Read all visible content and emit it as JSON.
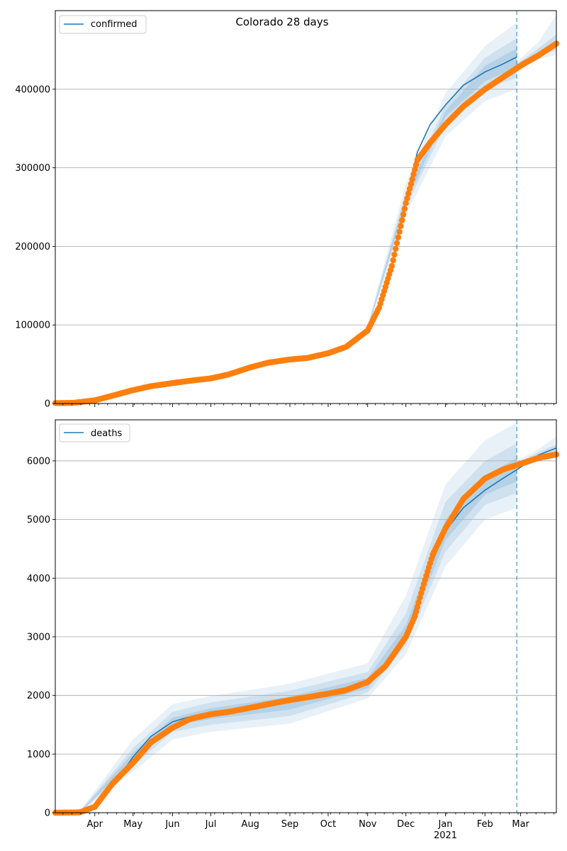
{
  "colors": {
    "model": "#1f77b4",
    "observed": "#ff7f0e",
    "band": "#1f77b4",
    "grid": "#b0b0b0",
    "axis": "#000000"
  },
  "chart_data": [
    {
      "type": "line",
      "title": "Colorado 28 days",
      "xlabel": "",
      "ylabel": "",
      "x_unit": "date",
      "x_range": [
        "2020-03-01",
        "2021-03-29"
      ],
      "ylim": [
        0,
        500000
      ],
      "yticks": [
        0,
        100000,
        200000,
        300000,
        400000
      ],
      "ytick_labels": [
        "0",
        "100000",
        "200000",
        "300000",
        "400000"
      ],
      "grid": "horizontal",
      "legend": {
        "placement": "top-left",
        "entries": [
          "confirmed"
        ]
      },
      "forecast_start": "2021-02-26",
      "series": [
        {
          "name": "confirmed",
          "style": "line",
          "x": [
            "2020-03-01",
            "2020-03-15",
            "2020-04-01",
            "2020-04-15",
            "2020-05-01",
            "2020-05-15",
            "2020-06-01",
            "2020-06-15",
            "2020-07-01",
            "2020-07-15",
            "2020-08-01",
            "2020-08-15",
            "2020-09-01",
            "2020-09-15",
            "2020-10-01",
            "2020-10-15",
            "2020-11-01",
            "2020-11-10",
            "2020-11-20",
            "2020-12-01",
            "2020-12-10",
            "2020-12-20",
            "2021-01-01",
            "2021-01-15",
            "2021-02-01",
            "2021-02-15",
            "2021-02-26"
          ],
          "values": [
            500,
            800,
            4000,
            10000,
            17000,
            22000,
            27000,
            29000,
            32000,
            38000,
            46000,
            52000,
            56000,
            59000,
            65000,
            74000,
            96000,
            125000,
            175000,
            260000,
            320000,
            355000,
            380000,
            405000,
            422000,
            432000,
            441000
          ]
        },
        {
          "style": "points",
          "x": [
            "2020-03-01",
            "2020-03-15",
            "2020-04-01",
            "2020-04-15",
            "2020-05-01",
            "2020-05-15",
            "2020-06-01",
            "2020-06-15",
            "2020-07-01",
            "2020-07-15",
            "2020-08-01",
            "2020-08-15",
            "2020-09-01",
            "2020-09-15",
            "2020-10-01",
            "2020-10-15",
            "2020-11-01",
            "2020-11-10",
            "2020-11-20",
            "2020-12-01",
            "2020-12-10",
            "2020-12-20",
            "2021-01-01",
            "2021-01-15",
            "2021-02-01",
            "2021-02-15",
            "2021-03-01",
            "2021-03-15",
            "2021-03-29"
          ],
          "values": [
            500,
            800,
            4000,
            10000,
            17000,
            22000,
            26000,
            29000,
            32000,
            37000,
            46000,
            52000,
            56000,
            58000,
            64000,
            72000,
            93000,
            122000,
            175000,
            255000,
            310000,
            332000,
            355000,
            378000,
            400000,
            415000,
            430000,
            443000,
            458000
          ]
        }
      ],
      "bands": [
        {
          "level": "outer",
          "x": [
            "2020-11-01",
            "2020-12-01",
            "2021-01-01",
            "2021-02-01",
            "2021-02-26"
          ],
          "lower": [
            92000,
            240000,
            340000,
            385000,
            400000
          ],
          "upper": [
            100000,
            280000,
            395000,
            455000,
            485000
          ]
        },
        {
          "level": "middle",
          "x": [
            "2020-11-01",
            "2020-12-01",
            "2021-01-01",
            "2021-02-01",
            "2021-02-26"
          ],
          "lower": [
            94000,
            250000,
            355000,
            400000,
            415000
          ],
          "upper": [
            98000,
            270000,
            380000,
            440000,
            465000
          ]
        },
        {
          "level": "inner",
          "x": [
            "2020-11-01",
            "2020-12-01",
            "2021-01-01",
            "2021-02-01",
            "2021-02-26"
          ],
          "lower": [
            95000,
            255000,
            365000,
            410000,
            428000
          ],
          "upper": [
            97000,
            265000,
            372000,
            430000,
            452000
          ]
        },
        {
          "level": "future-outer",
          "x": [
            "2021-02-26",
            "2021-03-15",
            "2021-03-29"
          ],
          "lower": [
            425000,
            438000,
            444000
          ],
          "upper": [
            435000,
            460000,
            495000
          ]
        },
        {
          "level": "future-inner",
          "x": [
            "2021-02-26",
            "2021-03-15",
            "2021-03-29"
          ],
          "lower": [
            427000,
            442000,
            450000
          ],
          "upper": [
            432000,
            452000,
            470000
          ]
        }
      ]
    },
    {
      "type": "line",
      "title": "",
      "xlabel": "",
      "ylabel": "",
      "x_unit": "date",
      "x_range": [
        "2020-03-01",
        "2021-03-29"
      ],
      "ylim": [
        0,
        6700
      ],
      "yticks": [
        0,
        1000,
        2000,
        3000,
        4000,
        5000,
        6000
      ],
      "ytick_labels": [
        "0",
        "1000",
        "2000",
        "3000",
        "4000",
        "5000",
        "6000"
      ],
      "xticks": [
        "2020-04-01",
        "2020-05-01",
        "2020-06-01",
        "2020-07-01",
        "2020-08-01",
        "2020-09-01",
        "2020-10-01",
        "2020-11-01",
        "2020-12-01",
        "2021-01-01",
        "2021-02-01",
        "2021-03-01"
      ],
      "xtick_labels": [
        "Apr",
        "May",
        "Jun",
        "Jul",
        "Aug",
        "Sep",
        "Oct",
        "Nov",
        "Dec",
        "Jan",
        "Feb",
        "Mar"
      ],
      "xtick_sublabel": {
        "at": "2021-01-01",
        "text": "2021"
      },
      "grid": "horizontal",
      "legend": {
        "placement": "top-left",
        "entries": [
          "deaths"
        ]
      },
      "forecast_start": "2021-02-26",
      "series": [
        {
          "name": "deaths",
          "style": "line",
          "x": [
            "2020-03-01",
            "2020-03-20",
            "2020-04-01",
            "2020-04-15",
            "2020-05-01",
            "2020-05-15",
            "2020-06-01",
            "2020-06-15",
            "2020-07-01",
            "2020-07-15",
            "2020-08-01",
            "2020-08-15",
            "2020-09-01",
            "2020-09-15",
            "2020-10-01",
            "2020-10-15",
            "2020-11-01",
            "2020-11-15",
            "2020-12-01",
            "2020-12-10",
            "2020-12-20",
            "2021-01-01",
            "2021-01-15",
            "2021-02-01",
            "2021-02-15",
            "2021-02-26",
            "2021-03-15",
            "2021-03-29"
          ],
          "values": [
            0,
            5,
            100,
            450,
            950,
            1300,
            1550,
            1640,
            1690,
            1730,
            1800,
            1850,
            1900,
            1940,
            1990,
            2050,
            2200,
            2450,
            3000,
            3600,
            4200,
            4800,
            5200,
            5500,
            5700,
            5850,
            6100,
            6220
          ]
        },
        {
          "style": "points",
          "x": [
            "2020-03-01",
            "2020-03-20",
            "2020-04-01",
            "2020-04-15",
            "2020-05-01",
            "2020-05-15",
            "2020-06-01",
            "2020-06-15",
            "2020-07-01",
            "2020-07-15",
            "2020-08-01",
            "2020-08-15",
            "2020-09-01",
            "2020-09-15",
            "2020-10-01",
            "2020-10-15",
            "2020-11-01",
            "2020-11-15",
            "2020-12-01",
            "2020-12-08",
            "2020-12-15",
            "2020-12-22",
            "2021-01-01",
            "2021-01-15",
            "2021-02-01",
            "2021-02-15",
            "2021-03-01",
            "2021-03-15",
            "2021-03-29"
          ],
          "values": [
            0,
            5,
            100,
            500,
            850,
            1200,
            1450,
            1600,
            1680,
            1720,
            1790,
            1850,
            1920,
            1970,
            2030,
            2090,
            2230,
            2500,
            3000,
            3350,
            3900,
            4400,
            4850,
            5350,
            5700,
            5850,
            5950,
            6050,
            6110
          ]
        }
      ],
      "bands": [
        {
          "level": "outer",
          "x": [
            "2020-03-20",
            "2020-05-01",
            "2020-06-01",
            "2020-07-01",
            "2020-09-01",
            "2020-11-01",
            "2020-12-01",
            "2021-01-01",
            "2021-02-01",
            "2021-02-26"
          ],
          "lower": [
            0,
            700,
            1250,
            1380,
            1520,
            1950,
            2700,
            4200,
            5000,
            5200
          ],
          "upper": [
            20,
            1250,
            1850,
            1990,
            2200,
            2550,
            3700,
            5600,
            6350,
            6650
          ]
        },
        {
          "level": "middle",
          "x": [
            "2020-03-20",
            "2020-05-01",
            "2020-06-01",
            "2020-07-01",
            "2020-09-01",
            "2020-11-01",
            "2020-12-01",
            "2021-01-01",
            "2021-02-01",
            "2021-02-26"
          ],
          "lower": [
            0,
            800,
            1380,
            1500,
            1650,
            2050,
            2850,
            4450,
            5250,
            5450
          ],
          "upper": [
            15,
            1100,
            1720,
            1880,
            2080,
            2400,
            3400,
            5300,
            6000,
            6300
          ]
        },
        {
          "level": "inner",
          "x": [
            "2020-03-20",
            "2020-05-01",
            "2020-06-01",
            "2020-07-01",
            "2020-09-01",
            "2020-11-01",
            "2020-12-01",
            "2021-01-01",
            "2021-02-01",
            "2021-02-26"
          ],
          "lower": [
            0,
            880,
            1480,
            1600,
            1760,
            2120,
            2950,
            4650,
            5420,
            5650
          ],
          "upper": [
            10,
            1020,
            1620,
            1780,
            1980,
            2300,
            3200,
            5000,
            5750,
            6050
          ]
        },
        {
          "level": "future-outer",
          "x": [
            "2021-02-26",
            "2021-03-15",
            "2021-03-29"
          ],
          "lower": [
            5850,
            6000,
            6040
          ],
          "upper": [
            6000,
            6200,
            6420
          ]
        },
        {
          "level": "future-inner",
          "x": [
            "2021-02-26",
            "2021-03-15",
            "2021-03-29"
          ],
          "lower": [
            5900,
            6060,
            6120
          ],
          "upper": [
            5960,
            6150,
            6280
          ]
        }
      ]
    }
  ]
}
